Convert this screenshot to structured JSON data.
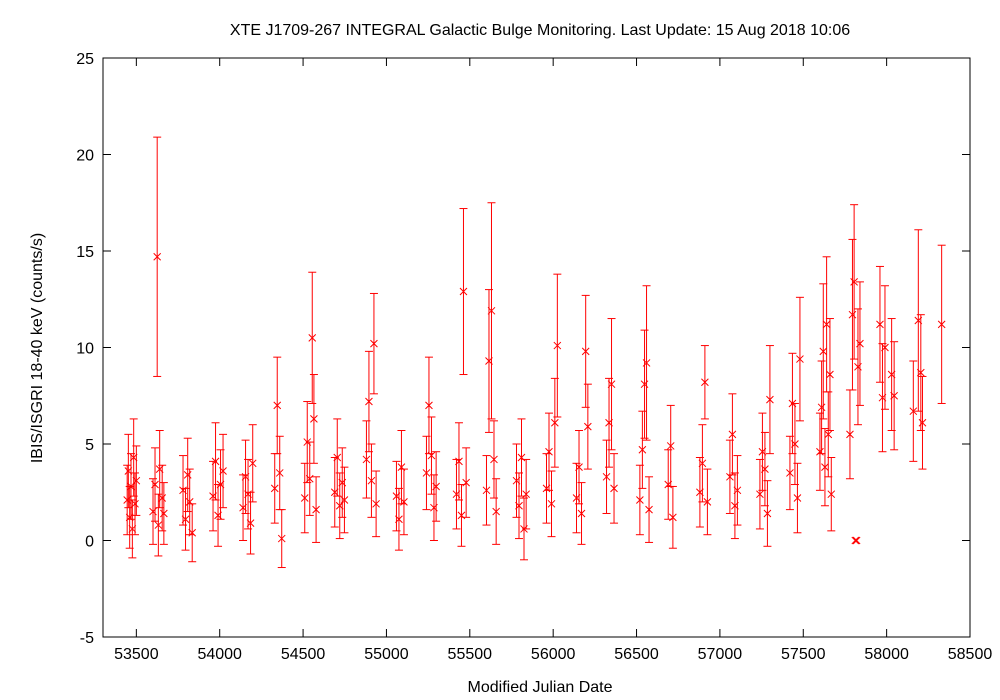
{
  "chart_data": {
    "type": "scatter",
    "title": "XTE J1709-267   INTEGRAL Galactic Bulge Monitoring.  Last Update: 15 Aug 2018 10:06",
    "xlabel": "Modified Julian Date",
    "ylabel": "IBIS/ISGRI 18-40 keV (counts/s)",
    "xlim": [
      53300,
      58500
    ],
    "ylim": [
      -5,
      25
    ],
    "xticks": [
      53500,
      54000,
      54500,
      55000,
      55500,
      56000,
      56500,
      57000,
      57500,
      58000,
      58500
    ],
    "yticks": [
      -5,
      0,
      5,
      10,
      15,
      20,
      25
    ],
    "grid": false,
    "marker": "x",
    "color": "#ff0000",
    "series": [
      {
        "points": [
          {
            "x": 53445,
            "y": 2.1,
            "err": 1.8
          },
          {
            "x": 53452,
            "y": 3.6,
            "err": 1.9
          },
          {
            "x": 53460,
            "y": 1.2,
            "err": 1.6
          },
          {
            "x": 53468,
            "y": 2.8,
            "err": 1.7
          },
          {
            "x": 53476,
            "y": 0.6,
            "err": 1.5
          },
          {
            "x": 53484,
            "y": 4.3,
            "err": 2.0
          },
          {
            "x": 53492,
            "y": 1.9,
            "err": 1.6
          },
          {
            "x": 53500,
            "y": 3.1,
            "err": 1.8
          },
          {
            "x": 53600,
            "y": 1.5,
            "err": 1.7
          },
          {
            "x": 53612,
            "y": 2.9,
            "err": 1.9
          },
          {
            "x": 53625,
            "y": 14.7,
            "err": 6.2
          },
          {
            "x": 53632,
            "y": 0.8,
            "err": 1.6
          },
          {
            "x": 53640,
            "y": 3.7,
            "err": 2.0
          },
          {
            "x": 53655,
            "y": 2.2,
            "err": 1.7
          },
          {
            "x": 53665,
            "y": 1.4,
            "err": 1.6
          },
          {
            "x": 53780,
            "y": 2.6,
            "err": 1.8
          },
          {
            "x": 53795,
            "y": 1.1,
            "err": 1.6
          },
          {
            "x": 53808,
            "y": 3.4,
            "err": 1.9
          },
          {
            "x": 53820,
            "y": 2.0,
            "err": 1.7
          },
          {
            "x": 53835,
            "y": 0.4,
            "err": 1.5
          },
          {
            "x": 53960,
            "y": 2.3,
            "err": 1.8
          },
          {
            "x": 53975,
            "y": 4.1,
            "err": 2.0
          },
          {
            "x": 53990,
            "y": 1.3,
            "err": 1.6
          },
          {
            "x": 54005,
            "y": 2.9,
            "err": 1.8
          },
          {
            "x": 54020,
            "y": 3.6,
            "err": 1.9
          },
          {
            "x": 54140,
            "y": 1.7,
            "err": 1.7
          },
          {
            "x": 54155,
            "y": 3.3,
            "err": 1.9
          },
          {
            "x": 54170,
            "y": 2.4,
            "err": 1.8
          },
          {
            "x": 54185,
            "y": 0.9,
            "err": 1.6
          },
          {
            "x": 54198,
            "y": 4.0,
            "err": 2.0
          },
          {
            "x": 54330,
            "y": 2.7,
            "err": 1.8
          },
          {
            "x": 54345,
            "y": 7.0,
            "err": 2.5
          },
          {
            "x": 54360,
            "y": 3.5,
            "err": 1.9
          },
          {
            "x": 54372,
            "y": 0.1,
            "err": 1.5
          },
          {
            "x": 54510,
            "y": 2.2,
            "err": 1.8
          },
          {
            "x": 54525,
            "y": 5.1,
            "err": 2.1
          },
          {
            "x": 54540,
            "y": 3.2,
            "err": 1.9
          },
          {
            "x": 54555,
            "y": 10.5,
            "err": 3.4
          },
          {
            "x": 54565,
            "y": 6.3,
            "err": 2.3
          },
          {
            "x": 54578,
            "y": 1.6,
            "err": 1.7
          },
          {
            "x": 54690,
            "y": 2.5,
            "err": 1.8
          },
          {
            "x": 54705,
            "y": 4.3,
            "err": 2.0
          },
          {
            "x": 54720,
            "y": 1.8,
            "err": 1.7
          },
          {
            "x": 54735,
            "y": 3.0,
            "err": 1.8
          },
          {
            "x": 54748,
            "y": 2.1,
            "err": 1.7
          },
          {
            "x": 54880,
            "y": 4.2,
            "err": 2.0
          },
          {
            "x": 54895,
            "y": 7.2,
            "err": 2.6
          },
          {
            "x": 54910,
            "y": 3.1,
            "err": 1.9
          },
          {
            "x": 54925,
            "y": 10.2,
            "err": 2.6
          },
          {
            "x": 54938,
            "y": 1.9,
            "err": 1.7
          },
          {
            "x": 55060,
            "y": 2.3,
            "err": 1.8
          },
          {
            "x": 55075,
            "y": 1.1,
            "err": 1.6
          },
          {
            "x": 55090,
            "y": 3.8,
            "err": 1.9
          },
          {
            "x": 55105,
            "y": 2.0,
            "err": 1.7
          },
          {
            "x": 55240,
            "y": 3.5,
            "err": 1.9
          },
          {
            "x": 55255,
            "y": 7.0,
            "err": 2.5
          },
          {
            "x": 55270,
            "y": 4.4,
            "err": 2.0
          },
          {
            "x": 55285,
            "y": 1.7,
            "err": 1.7
          },
          {
            "x": 55298,
            "y": 2.8,
            "err": 1.8
          },
          {
            "x": 55420,
            "y": 2.4,
            "err": 1.8
          },
          {
            "x": 55435,
            "y": 4.1,
            "err": 2.0
          },
          {
            "x": 55450,
            "y": 1.3,
            "err": 1.6
          },
          {
            "x": 55462,
            "y": 12.9,
            "err": 4.3
          },
          {
            "x": 55478,
            "y": 3.0,
            "err": 1.8
          },
          {
            "x": 55600,
            "y": 2.6,
            "err": 1.8
          },
          {
            "x": 55615,
            "y": 9.3,
            "err": 3.7
          },
          {
            "x": 55630,
            "y": 11.9,
            "err": 5.6
          },
          {
            "x": 55645,
            "y": 4.2,
            "err": 2.0
          },
          {
            "x": 55658,
            "y": 1.5,
            "err": 1.7
          },
          {
            "x": 55780,
            "y": 3.1,
            "err": 1.9
          },
          {
            "x": 55795,
            "y": 1.8,
            "err": 1.7
          },
          {
            "x": 55810,
            "y": 4.3,
            "err": 2.0
          },
          {
            "x": 55825,
            "y": 0.6,
            "err": 1.6
          },
          {
            "x": 55838,
            "y": 2.4,
            "err": 1.8
          },
          {
            "x": 55960,
            "y": 2.7,
            "err": 1.8
          },
          {
            "x": 55975,
            "y": 4.6,
            "err": 2.0
          },
          {
            "x": 55990,
            "y": 1.9,
            "err": 1.7
          },
          {
            "x": 56010,
            "y": 6.1,
            "err": 2.3
          },
          {
            "x": 56025,
            "y": 10.1,
            "err": 3.7
          },
          {
            "x": 56140,
            "y": 2.2,
            "err": 1.8
          },
          {
            "x": 56155,
            "y": 3.8,
            "err": 1.9
          },
          {
            "x": 56170,
            "y": 1.4,
            "err": 1.6
          },
          {
            "x": 56195,
            "y": 9.8,
            "err": 2.9
          },
          {
            "x": 56208,
            "y": 5.9,
            "err": 2.2
          },
          {
            "x": 56320,
            "y": 3.3,
            "err": 1.9
          },
          {
            "x": 56335,
            "y": 6.1,
            "err": 2.3
          },
          {
            "x": 56350,
            "y": 8.1,
            "err": 3.4
          },
          {
            "x": 56365,
            "y": 2.7,
            "err": 1.8
          },
          {
            "x": 56520,
            "y": 2.1,
            "err": 1.8
          },
          {
            "x": 56535,
            "y": 4.7,
            "err": 2.0
          },
          {
            "x": 56548,
            "y": 8.1,
            "err": 2.8
          },
          {
            "x": 56560,
            "y": 9.2,
            "err": 4.0
          },
          {
            "x": 56575,
            "y": 1.6,
            "err": 1.7
          },
          {
            "x": 56690,
            "y": 2.9,
            "err": 1.8
          },
          {
            "x": 56705,
            "y": 4.9,
            "err": 2.1
          },
          {
            "x": 56718,
            "y": 1.2,
            "err": 1.6
          },
          {
            "x": 56880,
            "y": 2.5,
            "err": 1.8
          },
          {
            "x": 56895,
            "y": 4.0,
            "err": 2.0
          },
          {
            "x": 56910,
            "y": 8.2,
            "err": 1.9
          },
          {
            "x": 56925,
            "y": 2.0,
            "err": 1.7
          },
          {
            "x": 57060,
            "y": 3.3,
            "err": 1.9
          },
          {
            "x": 57075,
            "y": 5.5,
            "err": 2.1
          },
          {
            "x": 57090,
            "y": 1.8,
            "err": 1.7
          },
          {
            "x": 57105,
            "y": 2.6,
            "err": 1.8
          },
          {
            "x": 57240,
            "y": 2.4,
            "err": 1.8
          },
          {
            "x": 57255,
            "y": 4.6,
            "err": 2.0
          },
          {
            "x": 57270,
            "y": 3.7,
            "err": 1.9
          },
          {
            "x": 57285,
            "y": 1.4,
            "err": 1.7
          },
          {
            "x": 57300,
            "y": 7.3,
            "err": 2.8
          },
          {
            "x": 57420,
            "y": 3.5,
            "err": 1.9
          },
          {
            "x": 57435,
            "y": 7.1,
            "err": 2.6
          },
          {
            "x": 57450,
            "y": 5.0,
            "err": 2.1
          },
          {
            "x": 57465,
            "y": 2.2,
            "err": 1.8
          },
          {
            "x": 57480,
            "y": 9.4,
            "err": 3.2
          },
          {
            "x": 57600,
            "y": 4.6,
            "err": 2.0
          },
          {
            "x": 57610,
            "y": 6.9,
            "err": 2.4
          },
          {
            "x": 57620,
            "y": 9.8,
            "err": 3.5
          },
          {
            "x": 57630,
            "y": 3.8,
            "err": 2.0
          },
          {
            "x": 57640,
            "y": 11.2,
            "err": 3.5
          },
          {
            "x": 57650,
            "y": 5.5,
            "err": 2.2
          },
          {
            "x": 57660,
            "y": 8.6,
            "err": 2.9
          },
          {
            "x": 57668,
            "y": 2.4,
            "err": 1.9
          },
          {
            "x": 57780,
            "y": 5.5,
            "err": 2.3
          },
          {
            "x": 57795,
            "y": 11.7,
            "err": 3.9
          },
          {
            "x": 57805,
            "y": 13.4,
            "err": 4.0
          },
          {
            "x": 57812,
            "y": 0.0,
            "err": 0.0
          },
          {
            "x": 57820,
            "y": 0.0,
            "err": 0.0
          },
          {
            "x": 57828,
            "y": 9.0,
            "err": 3.0
          },
          {
            "x": 57840,
            "y": 10.2,
            "err": 3.2
          },
          {
            "x": 57960,
            "y": 11.2,
            "err": 3.0
          },
          {
            "x": 57975,
            "y": 7.4,
            "err": 2.8
          },
          {
            "x": 57990,
            "y": 10.0,
            "err": 3.2
          },
          {
            "x": 58030,
            "y": 8.6,
            "err": 2.9
          },
          {
            "x": 58045,
            "y": 7.5,
            "err": 2.8
          },
          {
            "x": 58160,
            "y": 6.7,
            "err": 2.6
          },
          {
            "x": 58190,
            "y": 11.4,
            "err": 4.7
          },
          {
            "x": 58205,
            "y": 8.7,
            "err": 3.0
          },
          {
            "x": 58215,
            "y": 6.1,
            "err": 2.4
          },
          {
            "x": 58330,
            "y": 11.2,
            "err": 4.1
          }
        ]
      }
    ]
  }
}
